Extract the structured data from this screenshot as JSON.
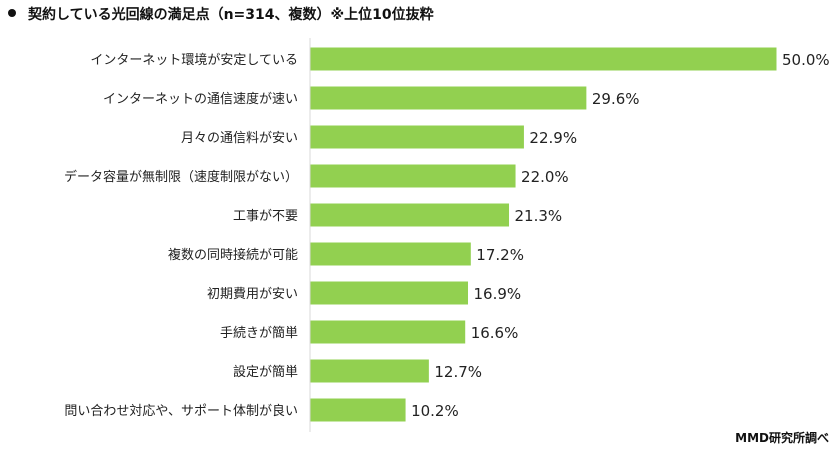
{
  "header": {
    "title": "契約している光回線の満足点（n=314、複数）※上位10位抜粋"
  },
  "footer": {
    "credit": "MMD研究所調べ"
  },
  "colors": {
    "bar": "#92D050",
    "axis": "#d9d9d9",
    "text": "#222222"
  },
  "chart_data": {
    "type": "bar",
    "orientation": "horizontal",
    "categories": [
      "インターネット環境が安定している",
      "インターネットの通信速度が速い",
      "月々の通信料が安い",
      "データ容量が無制限（速度制限がない）",
      "工事が不要",
      "複数の同時接続が可能",
      "初期費用が安い",
      "手続きが簡単",
      "設定が簡単",
      "問い合わせ対応や、サポート体制が良い"
    ],
    "values": [
      50.0,
      29.6,
      22.9,
      22.0,
      21.3,
      17.2,
      16.9,
      16.6,
      12.7,
      10.2
    ],
    "value_labels": [
      "50.0%",
      "29.6%",
      "22.9%",
      "22.0%",
      "21.3%",
      "17.2%",
      "16.9%",
      "16.6%",
      "12.7%",
      "10.2%"
    ],
    "xlim": [
      0,
      50
    ],
    "grid": false,
    "legend": "none"
  }
}
